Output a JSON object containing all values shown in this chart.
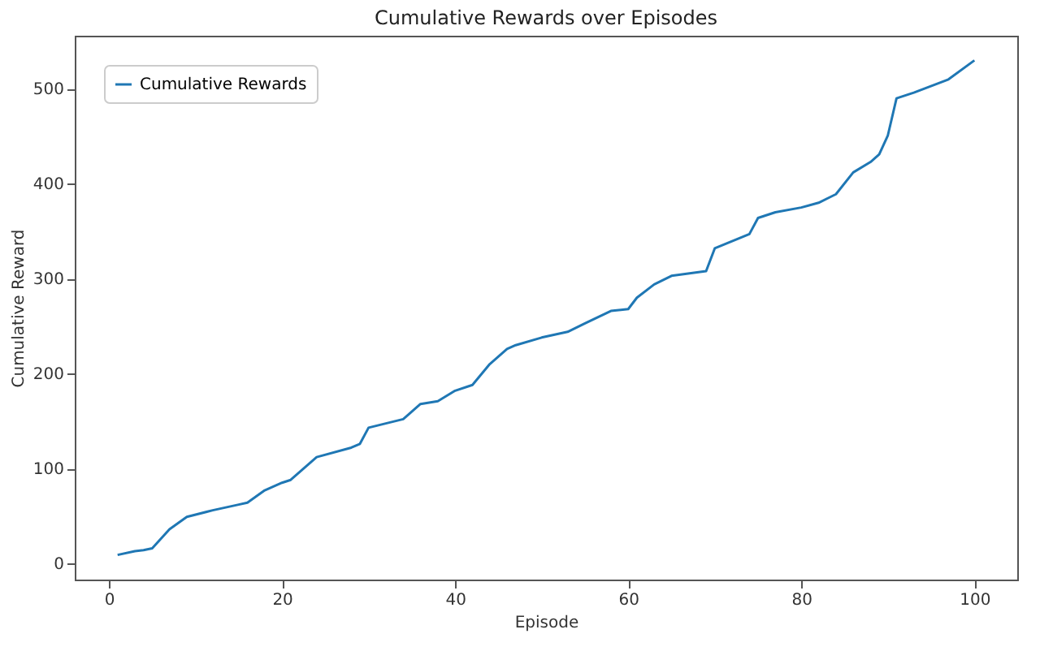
{
  "chart_data": {
    "type": "line",
    "title": "Cumulative Rewards over Episodes",
    "xlabel": "Episode",
    "ylabel": "Cumulative Reward",
    "x": [
      1,
      3,
      4,
      5,
      7,
      9,
      12,
      15,
      16,
      18,
      20,
      21,
      24,
      28,
      29,
      30,
      34,
      36,
      38,
      40,
      42,
      44,
      46,
      47,
      50,
      53,
      55,
      58,
      60,
      61,
      63,
      65,
      69,
      70,
      74,
      75,
      77,
      80,
      82,
      84,
      86,
      88,
      89,
      90,
      91,
      93,
      97,
      100
    ],
    "series": [
      {
        "name": "Cumulative Rewards",
        "color": "#1f77b4",
        "values": [
          9,
          13,
          14,
          16,
          36,
          49,
          56,
          62,
          64,
          77,
          85,
          88,
          112,
          122,
          126,
          143,
          152,
          168,
          171,
          182,
          188,
          210,
          226,
          230,
          238,
          244,
          253,
          266,
          268,
          280,
          294,
          303,
          308,
          332,
          347,
          364,
          370,
          375,
          380,
          389,
          412,
          423,
          431,
          451,
          490,
          496,
          510,
          530
        ]
      }
    ],
    "xlim": [
      -3.95,
      104.95
    ],
    "ylim": [
      -17,
      556
    ],
    "xticks": [
      0,
      20,
      40,
      60,
      80,
      100
    ],
    "yticks": [
      0,
      100,
      200,
      300,
      400,
      500
    ],
    "legend": "top left",
    "grid": false,
    "marker": "none",
    "line_style": "solid"
  }
}
